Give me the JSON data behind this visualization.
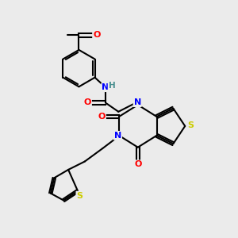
{
  "bg_color": "#ebebeb",
  "atom_colors": {
    "N": "#0000ff",
    "O": "#ff0000",
    "S": "#cccc00",
    "H": "#4a9090"
  },
  "bond_color": "#000000",
  "bond_width": 1.5,
  "figsize": [
    3.0,
    3.0
  ],
  "dpi": 100,
  "xlim": [
    0,
    10
  ],
  "ylim": [
    0,
    10
  ]
}
